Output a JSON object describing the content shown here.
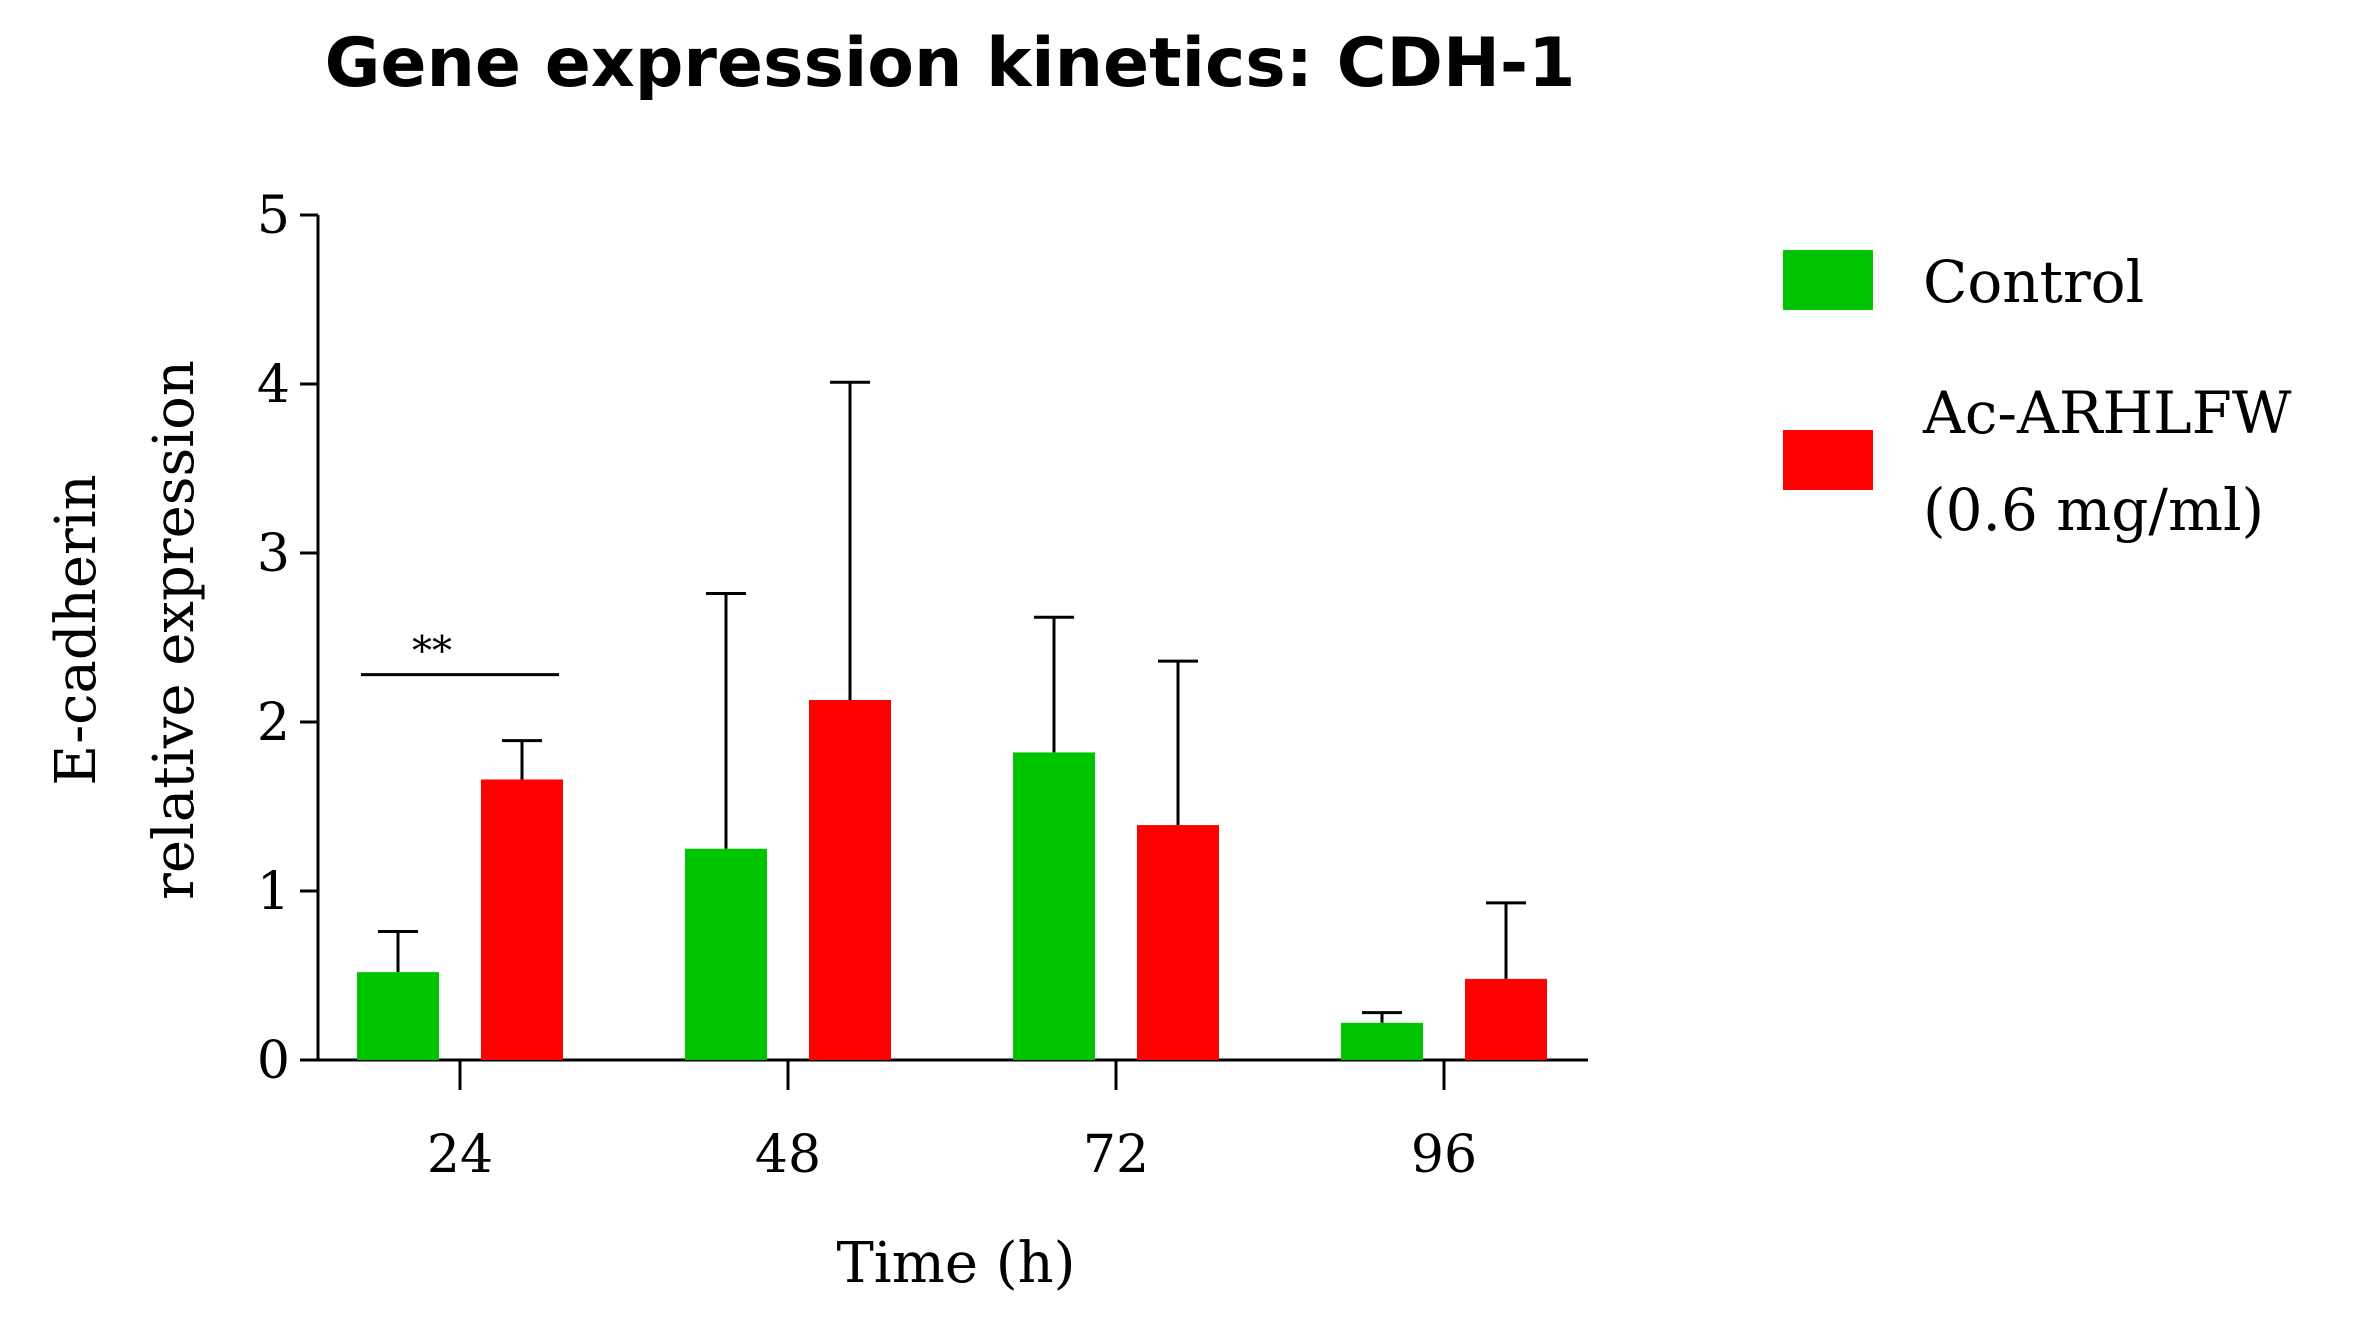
{
  "chart_data": {
    "type": "bar",
    "title": "Gene expression kinetics: CDH-1",
    "xlabel": "Time (h)",
    "ylabel_lines": [
      "E-cadherin",
      "relative expression"
    ],
    "categories": [
      "24",
      "48",
      "72",
      "96"
    ],
    "yticks": [
      "0",
      "1",
      "2",
      "3",
      "4",
      "5"
    ],
    "ylim": [
      0,
      5
    ],
    "series": [
      {
        "name": "Control",
        "color": "#00c400",
        "values": [
          0.52,
          1.25,
          1.82,
          0.22
        ],
        "errors": [
          0.24,
          1.51,
          0.8,
          0.06
        ]
      },
      {
        "name": "Ac-ARHLFW (0.6 mg/ml)",
        "legend_lines": [
          "Ac-ARHLFW",
          "(0.6 mg/ml)"
        ],
        "color": "#ff0000",
        "values": [
          1.66,
          2.13,
          1.39,
          0.48
        ],
        "errors": [
          0.23,
          1.88,
          0.97,
          0.45
        ]
      }
    ],
    "annotations": [
      {
        "text": "**",
        "category": "24",
        "y": 2.28
      }
    ],
    "legend_position": "right"
  }
}
